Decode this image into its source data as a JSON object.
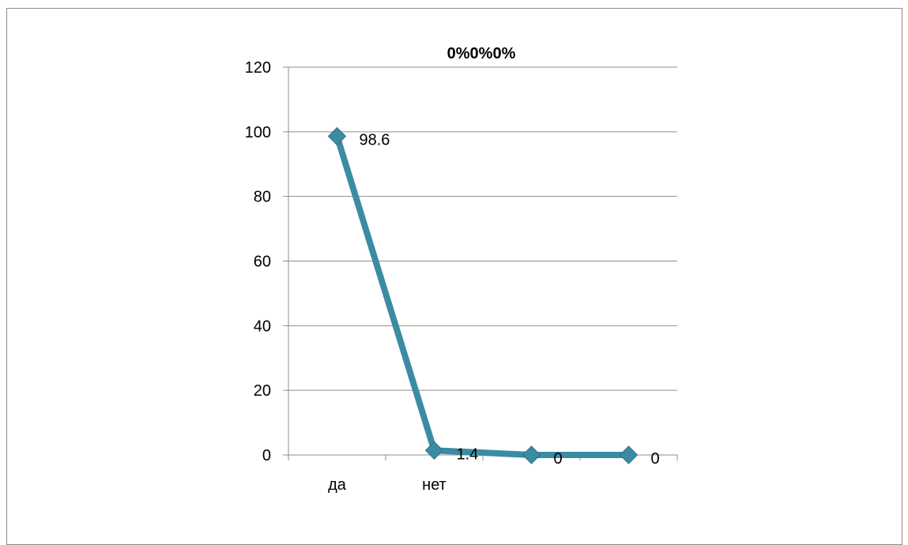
{
  "chart_data": {
    "type": "line",
    "title": "0%0%0%",
    "categories": [
      "да",
      "нет",
      "",
      ""
    ],
    "series": [
      {
        "values": [
          98.6,
          1.4,
          0,
          0
        ],
        "data_labels": [
          "98.6",
          "1.4",
          "0",
          "0"
        ]
      }
    ],
    "ylim": [
      0,
      120
    ],
    "yticks": [
      0,
      20,
      40,
      60,
      80,
      100,
      120
    ],
    "ytick_labels": [
      "0",
      "20",
      "40",
      "60",
      "80",
      "100",
      "120"
    ],
    "grid": true,
    "legend": "none",
    "colors": {
      "line": "#3b8ca3",
      "marker": "#3b8ca3",
      "grid": "#8c8c8c",
      "axis": "#8c8c8c"
    }
  }
}
